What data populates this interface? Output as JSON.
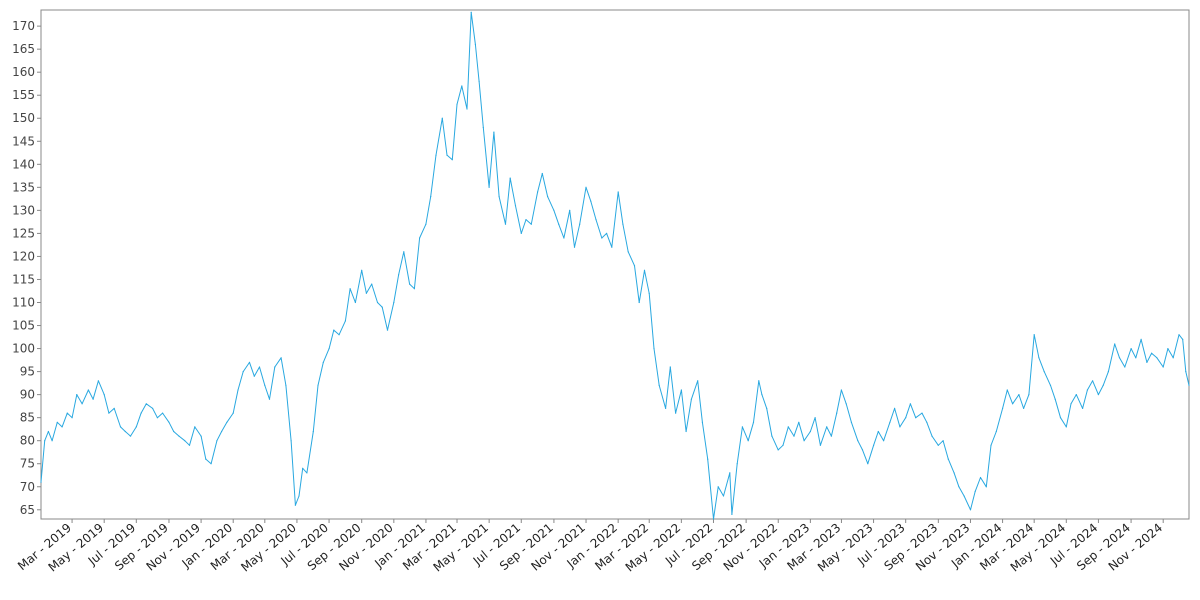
{
  "chart_data": {
    "type": "line",
    "title": "",
    "xlabel": "",
    "ylabel": "",
    "line_color": "#29a8e0",
    "axis_color": "#888888",
    "grid": false,
    "legend": "none",
    "ylim": [
      63,
      173.5
    ],
    "xlim": [
      "2019-01-01",
      "2024-12-20"
    ],
    "y_ticks": [
      65,
      70,
      75,
      80,
      85,
      90,
      95,
      100,
      105,
      110,
      115,
      120,
      125,
      130,
      135,
      140,
      145,
      150,
      155,
      160,
      165,
      170
    ],
    "x_ticks": [
      {
        "date": "2019-03-01",
        "label": "Mar - 2019"
      },
      {
        "date": "2019-05-01",
        "label": "May - 2019"
      },
      {
        "date": "2019-07-01",
        "label": "Jul - 2019"
      },
      {
        "date": "2019-09-01",
        "label": "Sep - 2019"
      },
      {
        "date": "2019-11-01",
        "label": "Nov - 2019"
      },
      {
        "date": "2020-01-01",
        "label": "Jan - 2020"
      },
      {
        "date": "2020-03-01",
        "label": "Mar - 2020"
      },
      {
        "date": "2020-05-01",
        "label": "May - 2020"
      },
      {
        "date": "2020-07-01",
        "label": "Jul - 2020"
      },
      {
        "date": "2020-09-01",
        "label": "Sep - 2020"
      },
      {
        "date": "2020-11-01",
        "label": "Nov - 2020"
      },
      {
        "date": "2021-01-01",
        "label": "Jan - 2021"
      },
      {
        "date": "2021-03-01",
        "label": "Mar - 2021"
      },
      {
        "date": "2021-05-01",
        "label": "May - 2021"
      },
      {
        "date": "2021-07-01",
        "label": "Jul - 2021"
      },
      {
        "date": "2021-09-01",
        "label": "Sep - 2021"
      },
      {
        "date": "2021-11-01",
        "label": "Nov - 2021"
      },
      {
        "date": "2022-01-01",
        "label": "Jan - 2022"
      },
      {
        "date": "2022-03-01",
        "label": "Mar - 2022"
      },
      {
        "date": "2022-05-01",
        "label": "May - 2022"
      },
      {
        "date": "2022-07-01",
        "label": "Jul - 2022"
      },
      {
        "date": "2022-09-01",
        "label": "Sep - 2022"
      },
      {
        "date": "2022-11-01",
        "label": "Nov - 2022"
      },
      {
        "date": "2023-01-01",
        "label": "Jan - 2023"
      },
      {
        "date": "2023-03-01",
        "label": "Mar - 2023"
      },
      {
        "date": "2023-05-01",
        "label": "May - 2023"
      },
      {
        "date": "2023-07-01",
        "label": "Jul - 2023"
      },
      {
        "date": "2023-09-01",
        "label": "Sep - 2023"
      },
      {
        "date": "2023-11-01",
        "label": "Nov - 2023"
      },
      {
        "date": "2024-01-01",
        "label": "Jan - 2024"
      },
      {
        "date": "2024-03-01",
        "label": "Mar - 2024"
      },
      {
        "date": "2024-05-01",
        "label": "May - 2024"
      },
      {
        "date": "2024-07-01",
        "label": "Jul - 2024"
      },
      {
        "date": "2024-09-01",
        "label": "Sep - 2024"
      },
      {
        "date": "2024-11-01",
        "label": "Nov - 2024"
      }
    ],
    "series": [
      {
        "points": [
          [
            "2019-01-01",
            71
          ],
          [
            "2019-01-08",
            80
          ],
          [
            "2019-01-15",
            82
          ],
          [
            "2019-01-22",
            80
          ],
          [
            "2019-02-01",
            84
          ],
          [
            "2019-02-10",
            83
          ],
          [
            "2019-02-20",
            86
          ],
          [
            "2019-03-01",
            85
          ],
          [
            "2019-03-10",
            90
          ],
          [
            "2019-03-20",
            88
          ],
          [
            "2019-04-01",
            91
          ],
          [
            "2019-04-10",
            89
          ],
          [
            "2019-04-20",
            93
          ],
          [
            "2019-05-01",
            90
          ],
          [
            "2019-05-10",
            86
          ],
          [
            "2019-05-20",
            87
          ],
          [
            "2019-06-01",
            83
          ],
          [
            "2019-06-10",
            82
          ],
          [
            "2019-06-20",
            81
          ],
          [
            "2019-07-01",
            83
          ],
          [
            "2019-07-10",
            86
          ],
          [
            "2019-07-20",
            88
          ],
          [
            "2019-08-01",
            87
          ],
          [
            "2019-08-10",
            85
          ],
          [
            "2019-08-20",
            86
          ],
          [
            "2019-09-01",
            84
          ],
          [
            "2019-09-10",
            82
          ],
          [
            "2019-09-20",
            81
          ],
          [
            "2019-10-01",
            80
          ],
          [
            "2019-10-10",
            79
          ],
          [
            "2019-10-20",
            83
          ],
          [
            "2019-11-01",
            81
          ],
          [
            "2019-11-10",
            76
          ],
          [
            "2019-11-20",
            75
          ],
          [
            "2019-12-01",
            80
          ],
          [
            "2019-12-10",
            82
          ],
          [
            "2019-12-20",
            84
          ],
          [
            "2020-01-01",
            86
          ],
          [
            "2020-01-10",
            91
          ],
          [
            "2020-01-20",
            95
          ],
          [
            "2020-02-01",
            97
          ],
          [
            "2020-02-10",
            94
          ],
          [
            "2020-02-20",
            96
          ],
          [
            "2020-03-01",
            92
          ],
          [
            "2020-03-10",
            89
          ],
          [
            "2020-03-20",
            96
          ],
          [
            "2020-04-01",
            98
          ],
          [
            "2020-04-10",
            92
          ],
          [
            "2020-04-20",
            80
          ],
          [
            "2020-04-28",
            66
          ],
          [
            "2020-05-05",
            68
          ],
          [
            "2020-05-12",
            74
          ],
          [
            "2020-05-20",
            73
          ],
          [
            "2020-06-01",
            82
          ],
          [
            "2020-06-10",
            92
          ],
          [
            "2020-06-20",
            97
          ],
          [
            "2020-07-01",
            100
          ],
          [
            "2020-07-10",
            104
          ],
          [
            "2020-07-20",
            103
          ],
          [
            "2020-08-01",
            106
          ],
          [
            "2020-08-10",
            113
          ],
          [
            "2020-08-20",
            110
          ],
          [
            "2020-09-01",
            117
          ],
          [
            "2020-09-10",
            112
          ],
          [
            "2020-09-20",
            114
          ],
          [
            "2020-10-01",
            110
          ],
          [
            "2020-10-10",
            109
          ],
          [
            "2020-10-20",
            104
          ],
          [
            "2020-11-01",
            110
          ],
          [
            "2020-11-10",
            116
          ],
          [
            "2020-11-20",
            121
          ],
          [
            "2020-12-01",
            114
          ],
          [
            "2020-12-10",
            113
          ],
          [
            "2020-12-20",
            124
          ],
          [
            "2021-01-01",
            127
          ],
          [
            "2021-01-10",
            133
          ],
          [
            "2021-01-20",
            142
          ],
          [
            "2021-02-01",
            150
          ],
          [
            "2021-02-10",
            142
          ],
          [
            "2021-02-20",
            141
          ],
          [
            "2021-03-01",
            153
          ],
          [
            "2021-03-10",
            157
          ],
          [
            "2021-03-20",
            152
          ],
          [
            "2021-03-28",
            173
          ],
          [
            "2021-04-05",
            166
          ],
          [
            "2021-04-12",
            158
          ],
          [
            "2021-04-20",
            148
          ],
          [
            "2021-05-01",
            135
          ],
          [
            "2021-05-10",
            147
          ],
          [
            "2021-05-20",
            133
          ],
          [
            "2021-06-01",
            127
          ],
          [
            "2021-06-10",
            137
          ],
          [
            "2021-06-20",
            131
          ],
          [
            "2021-07-01",
            125
          ],
          [
            "2021-07-10",
            128
          ],
          [
            "2021-07-20",
            127
          ],
          [
            "2021-08-01",
            134
          ],
          [
            "2021-08-10",
            138
          ],
          [
            "2021-08-20",
            133
          ],
          [
            "2021-09-01",
            130
          ],
          [
            "2021-09-10",
            127
          ],
          [
            "2021-09-20",
            124
          ],
          [
            "2021-10-01",
            130
          ],
          [
            "2021-10-10",
            122
          ],
          [
            "2021-10-20",
            127
          ],
          [
            "2021-11-01",
            135
          ],
          [
            "2021-11-10",
            132
          ],
          [
            "2021-11-20",
            128
          ],
          [
            "2021-12-01",
            124
          ],
          [
            "2021-12-10",
            125
          ],
          [
            "2021-12-20",
            122
          ],
          [
            "2022-01-01",
            134
          ],
          [
            "2022-01-10",
            127
          ],
          [
            "2022-01-20",
            121
          ],
          [
            "2022-02-01",
            118
          ],
          [
            "2022-02-10",
            110
          ],
          [
            "2022-02-20",
            117
          ],
          [
            "2022-03-01",
            112
          ],
          [
            "2022-03-10",
            100
          ],
          [
            "2022-03-20",
            92
          ],
          [
            "2022-04-01",
            87
          ],
          [
            "2022-04-10",
            96
          ],
          [
            "2022-04-20",
            86
          ],
          [
            "2022-05-01",
            91
          ],
          [
            "2022-05-10",
            82
          ],
          [
            "2022-05-20",
            89
          ],
          [
            "2022-06-01",
            93
          ],
          [
            "2022-06-10",
            84
          ],
          [
            "2022-06-20",
            76
          ],
          [
            "2022-07-01",
            63
          ],
          [
            "2022-07-10",
            70
          ],
          [
            "2022-07-20",
            68
          ],
          [
            "2022-08-01",
            73
          ],
          [
            "2022-08-05",
            64
          ],
          [
            "2022-08-15",
            75
          ],
          [
            "2022-08-25",
            83
          ],
          [
            "2022-09-05",
            80
          ],
          [
            "2022-09-15",
            84
          ],
          [
            "2022-09-25",
            93
          ],
          [
            "2022-10-01",
            90
          ],
          [
            "2022-10-10",
            87
          ],
          [
            "2022-10-20",
            81
          ],
          [
            "2022-11-01",
            78
          ],
          [
            "2022-11-10",
            79
          ],
          [
            "2022-11-20",
            83
          ],
          [
            "2022-12-01",
            81
          ],
          [
            "2022-12-10",
            84
          ],
          [
            "2022-12-20",
            80
          ],
          [
            "2023-01-01",
            82
          ],
          [
            "2023-01-10",
            85
          ],
          [
            "2023-01-20",
            79
          ],
          [
            "2023-02-01",
            83
          ],
          [
            "2023-02-10",
            81
          ],
          [
            "2023-02-20",
            86
          ],
          [
            "2023-03-01",
            91
          ],
          [
            "2023-03-10",
            88
          ],
          [
            "2023-03-20",
            84
          ],
          [
            "2023-04-01",
            80
          ],
          [
            "2023-04-10",
            78
          ],
          [
            "2023-04-20",
            75
          ],
          [
            "2023-05-01",
            79
          ],
          [
            "2023-05-10",
            82
          ],
          [
            "2023-05-20",
            80
          ],
          [
            "2023-06-01",
            84
          ],
          [
            "2023-06-10",
            87
          ],
          [
            "2023-06-20",
            83
          ],
          [
            "2023-07-01",
            85
          ],
          [
            "2023-07-10",
            88
          ],
          [
            "2023-07-20",
            85
          ],
          [
            "2023-08-01",
            86
          ],
          [
            "2023-08-10",
            84
          ],
          [
            "2023-08-20",
            81
          ],
          [
            "2023-09-01",
            79
          ],
          [
            "2023-09-10",
            80
          ],
          [
            "2023-09-20",
            76
          ],
          [
            "2023-10-01",
            73
          ],
          [
            "2023-10-10",
            70
          ],
          [
            "2023-10-20",
            68
          ],
          [
            "2023-11-01",
            65
          ],
          [
            "2023-11-10",
            69
          ],
          [
            "2023-11-20",
            72
          ],
          [
            "2023-12-01",
            70
          ],
          [
            "2023-12-10",
            79
          ],
          [
            "2023-12-20",
            82
          ],
          [
            "2024-01-01",
            87
          ],
          [
            "2024-01-10",
            91
          ],
          [
            "2024-01-20",
            88
          ],
          [
            "2024-02-01",
            90
          ],
          [
            "2024-02-10",
            87
          ],
          [
            "2024-02-20",
            90
          ],
          [
            "2024-03-01",
            103
          ],
          [
            "2024-03-10",
            98
          ],
          [
            "2024-03-20",
            95
          ],
          [
            "2024-04-01",
            92
          ],
          [
            "2024-04-10",
            89
          ],
          [
            "2024-04-20",
            85
          ],
          [
            "2024-05-01",
            83
          ],
          [
            "2024-05-10",
            88
          ],
          [
            "2024-05-20",
            90
          ],
          [
            "2024-06-01",
            87
          ],
          [
            "2024-06-10",
            91
          ],
          [
            "2024-06-20",
            93
          ],
          [
            "2024-07-01",
            90
          ],
          [
            "2024-07-10",
            92
          ],
          [
            "2024-07-20",
            95
          ],
          [
            "2024-08-01",
            101
          ],
          [
            "2024-08-10",
            98
          ],
          [
            "2024-08-20",
            96
          ],
          [
            "2024-09-01",
            100
          ],
          [
            "2024-09-10",
            98
          ],
          [
            "2024-09-20",
            102
          ],
          [
            "2024-10-01",
            97
          ],
          [
            "2024-10-10",
            99
          ],
          [
            "2024-10-20",
            98
          ],
          [
            "2024-11-01",
            96
          ],
          [
            "2024-11-10",
            100
          ],
          [
            "2024-11-20",
            98
          ],
          [
            "2024-12-01",
            103
          ],
          [
            "2024-12-08",
            102
          ],
          [
            "2024-12-14",
            95
          ],
          [
            "2024-12-20",
            92
          ]
        ]
      }
    ]
  }
}
